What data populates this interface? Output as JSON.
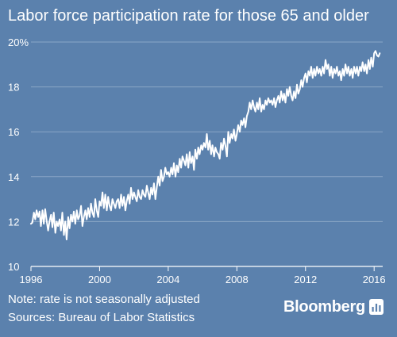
{
  "header": {
    "title": "Labor force participation rate for those 65 and older"
  },
  "footer": {
    "note": "Note: rate is not seasonally adjusted",
    "source": "Sources: Bureau of Labor Statistics",
    "brand": "Bloomberg"
  },
  "colors": {
    "background": "#5b81ad",
    "line": "#ffffff",
    "grid": "#8aa6c6",
    "axis": "#ffffff"
  },
  "chart_data": {
    "type": "line",
    "title": "Labor force participation rate for those 65 and older",
    "xlabel": "",
    "ylabel": "",
    "xlim": [
      1996,
      2016.5
    ],
    "ylim": [
      10,
      20
    ],
    "grid": true,
    "x_ticks": [
      1996,
      2000,
      2004,
      2008,
      2012,
      2016
    ],
    "x_tick_labels": [
      "1996",
      "2000",
      "2004",
      "2008",
      "2012",
      "2016"
    ],
    "y_ticks": [
      10,
      12,
      14,
      16,
      18,
      20
    ],
    "y_tick_labels": [
      "10",
      "12",
      "14",
      "16",
      "18",
      "20%"
    ],
    "series": [
      {
        "x": [
          1996.0,
          1996.08,
          1996.17,
          1996.25,
          1996.33,
          1996.42,
          1996.5,
          1996.58,
          1996.67,
          1996.75,
          1996.83,
          1996.92,
          1997.0,
          1997.08,
          1997.17,
          1997.25,
          1997.33,
          1997.42,
          1997.5,
          1997.58,
          1997.67,
          1997.75,
          1997.83,
          1997.92,
          1998.0,
          1998.08,
          1998.17,
          1998.25,
          1998.33,
          1998.42,
          1998.5,
          1998.58,
          1998.67,
          1998.75,
          1998.83,
          1998.92,
          1999.0,
          1999.08,
          1999.17,
          1999.25,
          1999.33,
          1999.42,
          1999.5,
          1999.58,
          1999.67,
          1999.75,
          1999.83,
          1999.92,
          2000.0,
          2000.08,
          2000.17,
          2000.25,
          2000.33,
          2000.42,
          2000.5,
          2000.58,
          2000.67,
          2000.75,
          2000.83,
          2000.92,
          2001.0,
          2001.08,
          2001.17,
          2001.25,
          2001.33,
          2001.42,
          2001.5,
          2001.58,
          2001.67,
          2001.75,
          2001.83,
          2001.92,
          2002.0,
          2002.08,
          2002.17,
          2002.25,
          2002.33,
          2002.42,
          2002.5,
          2002.58,
          2002.67,
          2002.75,
          2002.83,
          2002.92,
          2003.0,
          2003.08,
          2003.17,
          2003.25,
          2003.33,
          2003.42,
          2003.5,
          2003.58,
          2003.67,
          2003.75,
          2003.83,
          2003.92,
          2004.0,
          2004.08,
          2004.17,
          2004.25,
          2004.33,
          2004.42,
          2004.5,
          2004.58,
          2004.67,
          2004.75,
          2004.83,
          2004.92,
          2005.0,
          2005.08,
          2005.17,
          2005.25,
          2005.33,
          2005.42,
          2005.5,
          2005.58,
          2005.67,
          2005.75,
          2005.83,
          2005.92,
          2006.0,
          2006.08,
          2006.17,
          2006.25,
          2006.33,
          2006.42,
          2006.5,
          2006.58,
          2006.67,
          2006.75,
          2006.83,
          2006.92,
          2007.0,
          2007.08,
          2007.17,
          2007.25,
          2007.33,
          2007.42,
          2007.5,
          2007.58,
          2007.67,
          2007.75,
          2007.83,
          2007.92,
          2008.0,
          2008.08,
          2008.17,
          2008.25,
          2008.33,
          2008.42,
          2008.5,
          2008.58,
          2008.67,
          2008.75,
          2008.83,
          2008.92,
          2009.0,
          2009.08,
          2009.17,
          2009.25,
          2009.33,
          2009.42,
          2009.5,
          2009.58,
          2009.67,
          2009.75,
          2009.83,
          2009.92,
          2010.0,
          2010.08,
          2010.17,
          2010.25,
          2010.33,
          2010.42,
          2010.5,
          2010.58,
          2010.67,
          2010.75,
          2010.83,
          2010.92,
          2011.0,
          2011.08,
          2011.17,
          2011.25,
          2011.33,
          2011.42,
          2011.5,
          2011.58,
          2011.67,
          2011.75,
          2011.83,
          2011.92,
          2012.0,
          2012.08,
          2012.17,
          2012.25,
          2012.33,
          2012.42,
          2012.5,
          2012.58,
          2012.67,
          2012.75,
          2012.83,
          2012.92,
          2013.0,
          2013.08,
          2013.17,
          2013.25,
          2013.33,
          2013.42,
          2013.5,
          2013.58,
          2013.67,
          2013.75,
          2013.83,
          2013.92,
          2014.0,
          2014.08,
          2014.17,
          2014.25,
          2014.33,
          2014.42,
          2014.5,
          2014.58,
          2014.67,
          2014.75,
          2014.83,
          2014.92,
          2015.0,
          2015.08,
          2015.17,
          2015.25,
          2015.33,
          2015.42,
          2015.5,
          2015.58,
          2015.67,
          2015.75,
          2015.83,
          2015.92,
          2016.0,
          2016.08,
          2016.17,
          2016.25,
          2016.33
        ],
        "values": [
          11.9,
          11.95,
          12.4,
          12.1,
          12.5,
          12.2,
          12.45,
          11.8,
          12.5,
          11.9,
          12.55,
          12.0,
          11.6,
          12.0,
          12.3,
          11.75,
          12.4,
          11.5,
          12.0,
          11.8,
          12.1,
          11.6,
          12.4,
          11.4,
          12.0,
          11.2,
          12.2,
          11.7,
          12.3,
          12.0,
          12.45,
          11.9,
          12.5,
          12.1,
          12.25,
          12.7,
          11.8,
          12.2,
          12.5,
          12.1,
          12.6,
          12.2,
          12.8,
          12.4,
          12.2,
          13.0,
          12.5,
          12.2,
          12.9,
          12.7,
          13.3,
          12.6,
          13.2,
          12.5,
          13.1,
          12.7,
          12.5,
          13.0,
          12.8,
          12.6,
          12.9,
          13.0,
          12.6,
          13.2,
          12.7,
          13.1,
          12.5,
          12.9,
          13.2,
          12.8,
          13.5,
          13.0,
          13.3,
          13.1,
          12.9,
          13.4,
          13.1,
          13.0,
          13.4,
          13.2,
          13.1,
          13.6,
          13.3,
          13.0,
          13.5,
          13.2,
          13.7,
          13.0,
          13.5,
          14.0,
          13.6,
          14.3,
          13.8,
          14.0,
          14.4,
          14.1,
          14.2,
          14.0,
          14.4,
          14.1,
          14.6,
          14.0,
          14.5,
          14.2,
          14.8,
          14.4,
          14.9,
          14.7,
          14.5,
          15.0,
          14.4,
          15.1,
          14.6,
          14.9,
          14.3,
          15.2,
          14.8,
          15.3,
          15.0,
          15.4,
          15.2,
          15.5,
          15.3,
          15.9,
          15.2,
          15.6,
          15.0,
          15.4,
          14.9,
          15.3,
          15.1,
          15.0,
          14.8,
          15.5,
          15.2,
          15.7,
          15.4,
          14.9,
          16.0,
          15.5,
          15.9,
          15.7,
          16.1,
          15.6,
          15.9,
          16.3,
          16.0,
          16.5,
          16.3,
          16.6,
          16.2,
          16.7,
          16.9,
          17.3,
          17.0,
          17.4,
          17.1,
          16.9,
          17.3,
          17.0,
          17.5,
          16.9,
          17.2,
          17.0,
          17.4,
          17.2,
          17.5,
          17.3,
          17.4,
          17.2,
          17.5,
          17.1,
          17.4,
          17.6,
          17.3,
          17.8,
          17.4,
          17.7,
          17.3,
          17.9,
          17.6,
          18.0,
          17.6,
          17.4,
          17.8,
          17.5,
          18.1,
          17.7,
          17.9,
          18.3,
          18.0,
          18.4,
          18.6,
          18.2,
          18.7,
          18.5,
          18.9,
          18.4,
          18.8,
          18.5,
          18.9,
          18.6,
          18.8,
          18.5,
          18.9,
          18.6,
          19.2,
          18.8,
          19.0,
          18.5,
          18.9,
          18.4,
          18.8,
          18.6,
          18.9,
          18.5,
          18.7,
          18.3,
          18.8,
          18.5,
          19.0,
          18.6,
          18.9,
          18.5,
          18.8,
          18.4,
          18.9,
          18.6,
          18.9,
          18.5,
          18.9,
          18.7,
          19.1,
          18.7,
          19.0,
          18.6,
          19.2,
          18.8,
          19.3,
          18.9,
          19.5,
          19.6,
          19.4,
          19.35,
          19.5
        ]
      }
    ]
  }
}
